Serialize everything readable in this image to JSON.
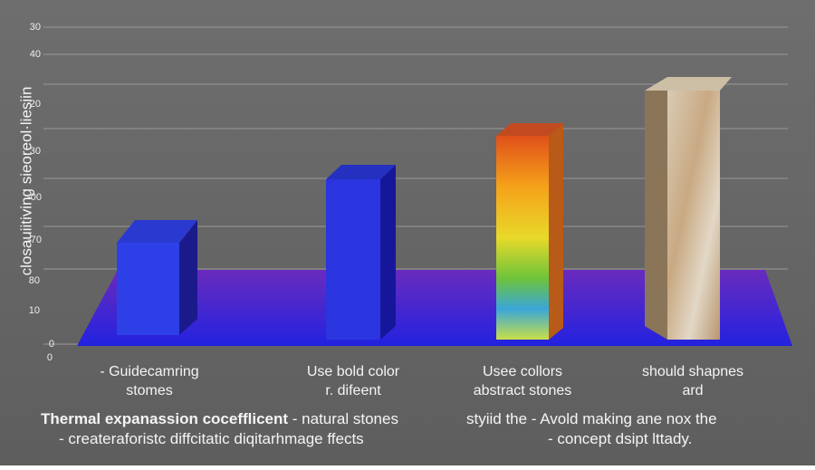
{
  "axis": {
    "label": "closauiitiving sieoreol·liesiin",
    "tick_labels": [
      "30",
      "40",
      "20",
      "30",
      "-00",
      "-70",
      "80",
      "10",
      "0",
      "0"
    ]
  },
  "categories": [
    {
      "line1": "- Guidecamring",
      "line2": "stomes"
    },
    {
      "line1": "Use bold color",
      "line2": "r. difeent"
    },
    {
      "line1": "Usee collors",
      "line2": "abstract stones"
    },
    {
      "line1": "should shapnes",
      "line2": "ard"
    }
  ],
  "caption": {
    "left_line1_bold": "Thermal expanassion cocefflicent",
    "left_line1_rest": " - natural stones",
    "right_line1": "styiid the - Avold making ane nox the",
    "left_line2": "-  createraforistc diffcitatic diqitarhmage ffects",
    "right_line2": "-  concept dsipt lttady."
  }
}
